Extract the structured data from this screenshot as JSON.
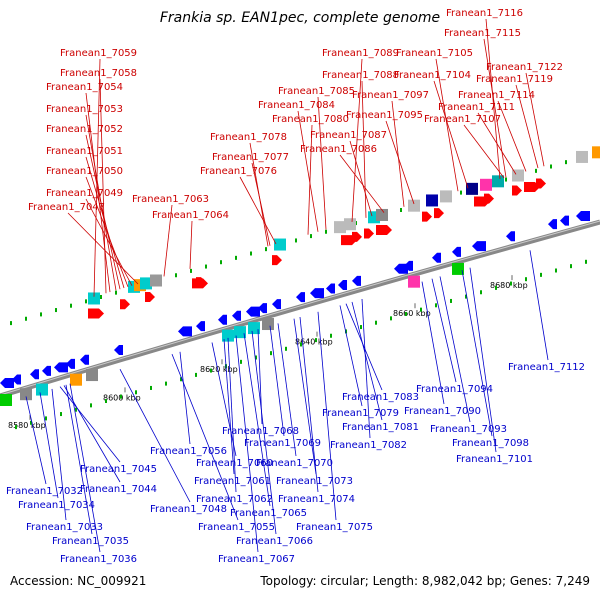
{
  "title": "Frankia sp. EAN1pec, complete genome",
  "footer": {
    "accession": "Accession: NC_009921",
    "summary": "Topology: circular; Length: 8,982,042 bp; Genes: 7,249"
  },
  "colors": {
    "top_labels": "#cc0000",
    "bottom_labels": "#0000cc",
    "forward_arrow": "#ff0000",
    "reverse_arrow": "#0000ff",
    "axis": "#888888"
  },
  "scale_labels": [
    "8580 kbp",
    "8600 kbp",
    "8620 kbp",
    "8640 kbp",
    "8660 kbp",
    "8680 kbp"
  ],
  "top_labels": [
    "Franean1_7059",
    "Franean1_7058",
    "Franean1_7054",
    "Franean1_7053",
    "Franean1_7052",
    "Franean1_7051",
    "Franean1_7050",
    "Franean1_7049",
    "Franean1_7047",
    "Franean1_7063",
    "Franean1_7064",
    "Franean1_7078",
    "Franean1_7077",
    "Franean1_7076",
    "Franean1_7080",
    "Franean1_7084",
    "Franean1_7085",
    "Franean1_7089",
    "Franean1_7088",
    "Franean1_7087",
    "Franean1_7086",
    "Franean1_7097",
    "Franean1_7095",
    "Franean1_7105",
    "Franean1_7104",
    "Franean1_7116",
    "Franean1_7115",
    "Franean1_7122",
    "Franean1_7119",
    "Franean1_7114",
    "Franean1_7111",
    "Franean1_7107"
  ],
  "bottom_labels": [
    "Franean1_7112",
    "Franean1_7083",
    "Franean1_7094",
    "Franean1_7079",
    "Franean1_7090",
    "Franean1_7081",
    "Franean1_7093",
    "Franean1_7082",
    "Franean1_7068",
    "Franean1_7098",
    "Franean1_7056",
    "Franean1_7069",
    "Franean1_7101",
    "Franean1_7060",
    "Franean1_7070",
    "Franean1_7045",
    "Franean1_7073",
    "Franean1_7061",
    "Franean1_7032",
    "Franean1_7044",
    "Franean1_7074",
    "Franean1_7062",
    "Franean1_7034",
    "Franean1_7048",
    "Franean1_7065",
    "Franean1_7075",
    "Franean1_7055",
    "Franean1_7033",
    "Franean1_7066",
    "Franean1_7035",
    "Franean1_7067",
    "Franean1_7036"
  ]
}
